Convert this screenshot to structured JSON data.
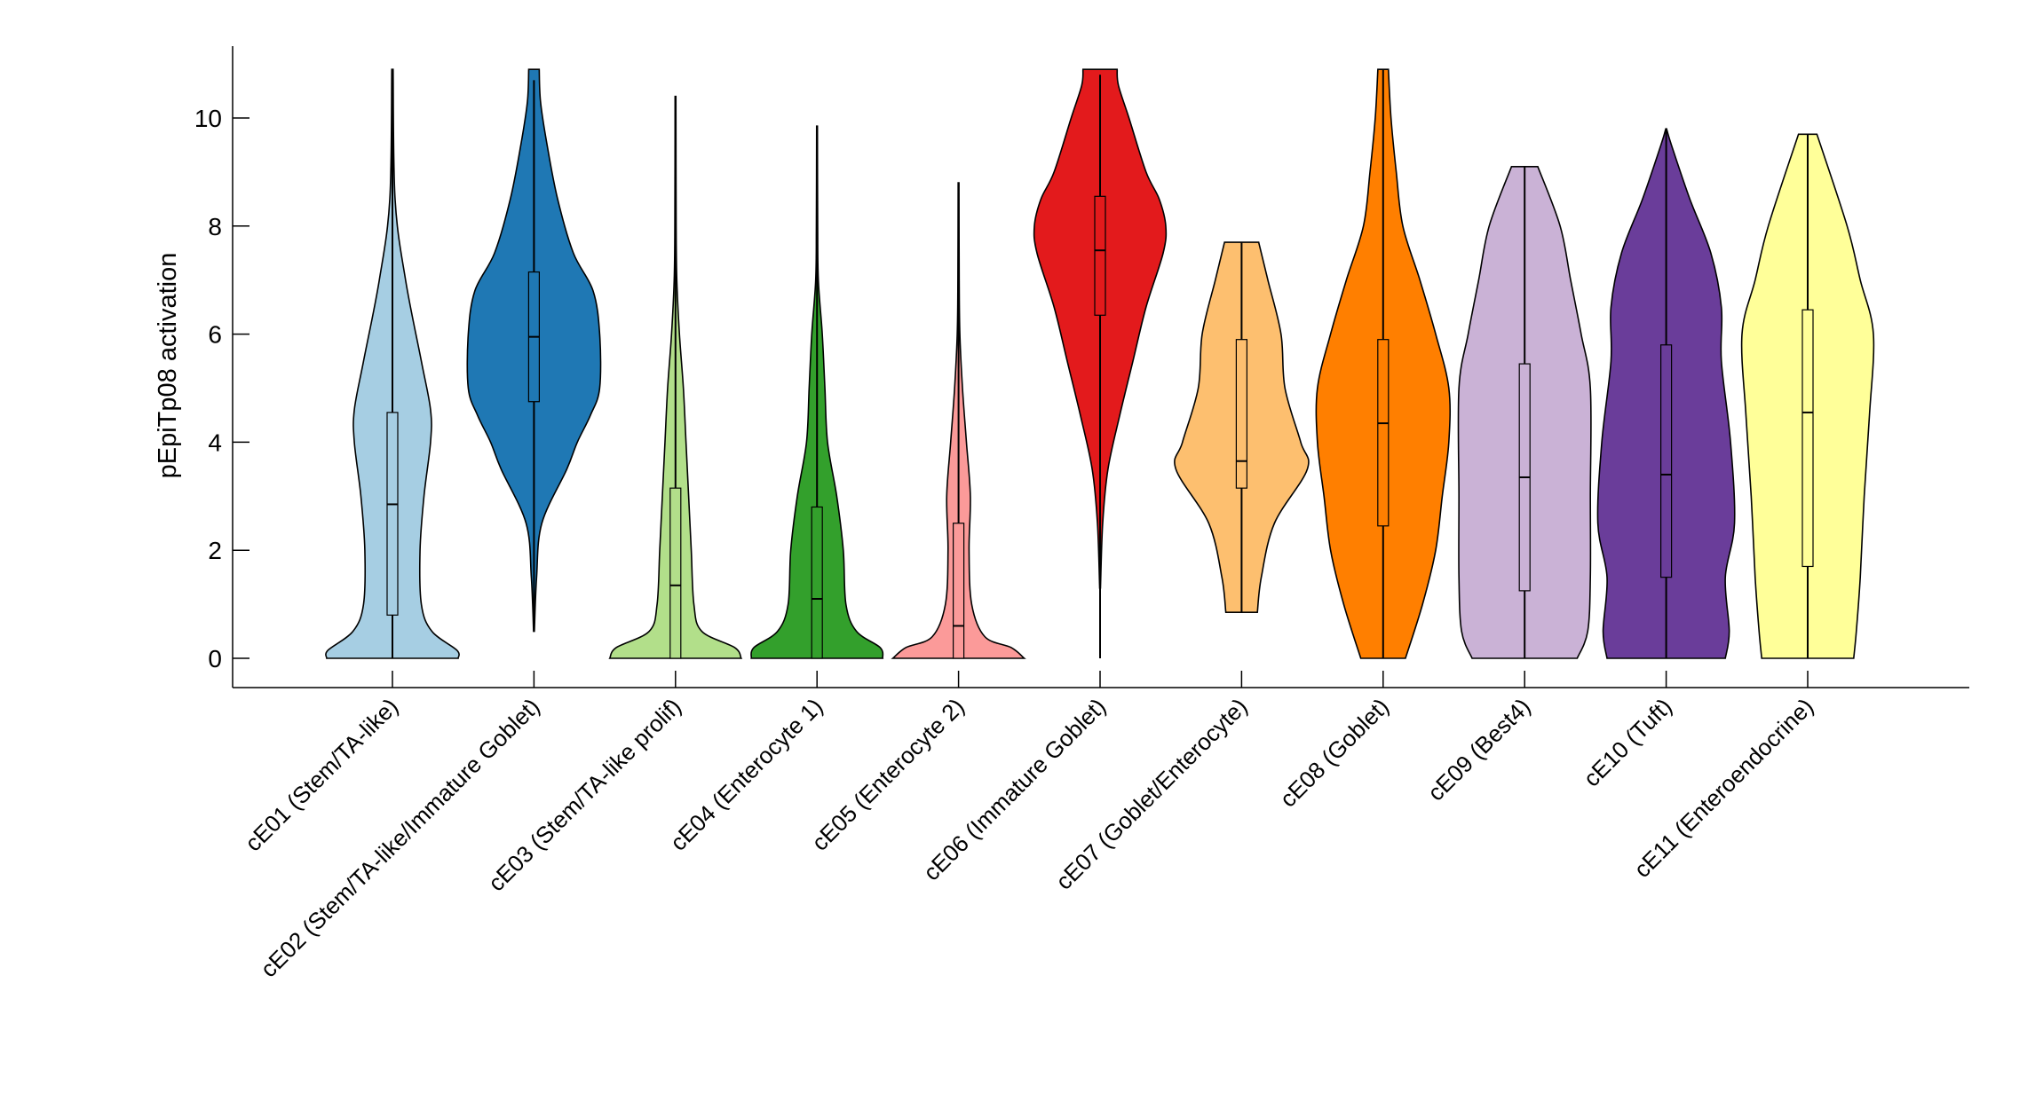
{
  "chart_data": {
    "type": "violin",
    "title": "",
    "xlabel": "",
    "ylabel": "pEpiTp08 activation",
    "ylim": [
      -0.55,
      11.3
    ],
    "yticks": [
      0,
      2,
      4,
      6,
      8,
      10
    ],
    "grid": false,
    "categories": [
      "cE01 (Stem/TA-like)",
      "cE02 (Stem/TA-like/Immature Goblet)",
      "cE03 (Stem/TA-like prolif)",
      "cE04 (Enterocyte 1)",
      "cE05 (Enterocyte 2)",
      "cE06 (Immature Goblet)",
      "cE07 (Goblet/Enterocyte)",
      "cE08 (Goblet)",
      "cE09 (Best4)",
      "cE10 (Tuft)",
      "cE11 (Enteroendocrine)"
    ],
    "colors": [
      "#a6cee3",
      "#1f78b4",
      "#b2df8a",
      "#33a02c",
      "#fb9a99",
      "#e31a1c",
      "#fdbf6f",
      "#ff7f00",
      "#cab2d6",
      "#6a3d9a",
      "#ffff99"
    ],
    "series": [
      {
        "name": "cE01 (Stem/TA-like)",
        "box": {
          "min": 0,
          "q1": 0.8,
          "median": 2.85,
          "q3": 4.55,
          "max": 10.9
        },
        "density": [
          [
            0,
            1
          ],
          [
            0.15,
            0.98
          ],
          [
            0.5,
            0.6
          ],
          [
            1,
            0.44
          ],
          [
            2,
            0.42
          ],
          [
            3,
            0.48
          ],
          [
            4,
            0.58
          ],
          [
            4.6,
            0.58
          ],
          [
            5.5,
            0.44
          ],
          [
            7,
            0.2
          ],
          [
            8.5,
            0.04
          ],
          [
            10.9,
            0.01
          ]
        ]
      },
      {
        "name": "cE02",
        "box": {
          "min": 0.5,
          "q1": 4.75,
          "median": 5.95,
          "q3": 7.15,
          "max": 10.7
        },
        "density": [
          [
            0.5,
            0
          ],
          [
            1.5,
            0.04
          ],
          [
            2.5,
            0.12
          ],
          [
            3.5,
            0.5
          ],
          [
            4,
            0.66
          ],
          [
            4.5,
            0.86
          ],
          [
            5,
            1
          ],
          [
            6,
            1
          ],
          [
            6.8,
            0.9
          ],
          [
            7.5,
            0.6
          ],
          [
            8.5,
            0.36
          ],
          [
            9.5,
            0.2
          ],
          [
            10.3,
            0.1
          ],
          [
            10.9,
            0.08
          ]
        ]
      },
      {
        "name": "cE03",
        "box": {
          "min": 0,
          "q1": 0,
          "median": 1.35,
          "q3": 3.15,
          "max": 10.4
        },
        "density": [
          [
            0,
            1
          ],
          [
            0.2,
            0.9
          ],
          [
            0.5,
            0.4
          ],
          [
            1,
            0.28
          ],
          [
            2,
            0.24
          ],
          [
            3,
            0.2
          ],
          [
            4,
            0.16
          ],
          [
            5,
            0.12
          ],
          [
            6,
            0.06
          ],
          [
            7,
            0.02
          ],
          [
            8,
            0.01
          ],
          [
            10.4,
            0
          ]
        ]
      },
      {
        "name": "cE04",
        "box": {
          "min": 0,
          "q1": 0,
          "median": 1.1,
          "q3": 2.8,
          "max": 9.85
        },
        "density": [
          [
            0,
            1
          ],
          [
            0.2,
            0.96
          ],
          [
            0.5,
            0.6
          ],
          [
            1,
            0.44
          ],
          [
            2,
            0.4
          ],
          [
            3,
            0.3
          ],
          [
            4,
            0.16
          ],
          [
            5,
            0.12
          ],
          [
            6,
            0.08
          ],
          [
            7,
            0.02
          ],
          [
            8,
            0.01
          ],
          [
            9.85,
            0
          ]
        ]
      },
      {
        "name": "cE05",
        "box": {
          "min": 0,
          "q1": 0,
          "median": 0.6,
          "q3": 2.5,
          "max": 8.8
        },
        "density": [
          [
            0,
            1
          ],
          [
            0.2,
            0.8
          ],
          [
            0.4,
            0.4
          ],
          [
            1,
            0.2
          ],
          [
            2,
            0.16
          ],
          [
            3,
            0.18
          ],
          [
            4,
            0.12
          ],
          [
            5,
            0.06
          ],
          [
            6,
            0.02
          ],
          [
            7,
            0.01
          ],
          [
            8.8,
            0
          ]
        ]
      },
      {
        "name": "cE06",
        "box": {
          "min": 0,
          "q1": 6.35,
          "median": 7.55,
          "q3": 8.55,
          "max": 10.8
        },
        "density": [
          [
            1.3,
            0
          ],
          [
            2.5,
            0.04
          ],
          [
            3.5,
            0.12
          ],
          [
            4.5,
            0.3
          ],
          [
            5.5,
            0.5
          ],
          [
            6.5,
            0.7
          ],
          [
            7.5,
            0.96
          ],
          [
            8,
            1
          ],
          [
            8.5,
            0.9
          ],
          [
            9,
            0.7
          ],
          [
            10,
            0.44
          ],
          [
            10.6,
            0.28
          ],
          [
            10.9,
            0.26
          ]
        ]
      },
      {
        "name": "cE07",
        "box": {
          "min": 0.85,
          "q1": 3.15,
          "median": 3.65,
          "q3": 5.9,
          "max": 7.7
        },
        "density": [
          [
            0.85,
            0.24
          ],
          [
            1.5,
            0.3
          ],
          [
            2.5,
            0.5
          ],
          [
            3.5,
            1
          ],
          [
            4,
            0.9
          ],
          [
            5,
            0.66
          ],
          [
            6,
            0.6
          ],
          [
            7,
            0.4
          ],
          [
            7.7,
            0.26
          ]
        ]
      },
      {
        "name": "cE08",
        "box": {
          "min": 0,
          "q1": 2.45,
          "median": 4.35,
          "q3": 5.9,
          "max": 10.9
        },
        "density": [
          [
            0,
            0.34
          ],
          [
            1,
            0.6
          ],
          [
            2,
            0.8
          ],
          [
            3,
            0.9
          ],
          [
            4,
            1
          ],
          [
            5,
            1
          ],
          [
            6,
            0.8
          ],
          [
            7,
            0.56
          ],
          [
            8,
            0.3
          ],
          [
            9,
            0.2
          ],
          [
            10,
            0.12
          ],
          [
            10.9,
            0.08
          ]
        ]
      },
      {
        "name": "cE09",
        "box": {
          "min": 0,
          "q1": 1.25,
          "median": 3.35,
          "q3": 5.45,
          "max": 9.1
        },
        "density": [
          [
            0,
            0.8
          ],
          [
            0.5,
            0.96
          ],
          [
            1.5,
            1
          ],
          [
            3,
            1
          ],
          [
            5,
            1
          ],
          [
            6,
            0.86
          ],
          [
            7,
            0.7
          ],
          [
            8,
            0.54
          ],
          [
            9.1,
            0.2
          ]
        ]
      },
      {
        "name": "cE10",
        "box": {
          "min": 0,
          "q1": 1.5,
          "median": 3.4,
          "q3": 5.8,
          "max": 9.8
        },
        "density": [
          [
            0,
            0.9
          ],
          [
            0.5,
            0.96
          ],
          [
            1.5,
            0.9
          ],
          [
            2.5,
            1.04
          ],
          [
            4,
            0.98
          ],
          [
            5.5,
            0.84
          ],
          [
            6.5,
            0.84
          ],
          [
            7.5,
            0.68
          ],
          [
            8.5,
            0.36
          ],
          [
            9.5,
            0.08
          ],
          [
            9.8,
            0
          ]
        ]
      },
      {
        "name": "cE11",
        "box": {
          "min": 0,
          "q1": 1.7,
          "median": 4.55,
          "q3": 6.45,
          "max": 9.7
        },
        "density": [
          [
            0,
            0.7
          ],
          [
            0.5,
            0.74
          ],
          [
            1.5,
            0.8
          ],
          [
            3,
            0.86
          ],
          [
            4.5,
            0.94
          ],
          [
            6,
            1
          ],
          [
            7,
            0.8
          ],
          [
            8,
            0.6
          ],
          [
            9.7,
            0.14
          ]
        ]
      }
    ]
  }
}
